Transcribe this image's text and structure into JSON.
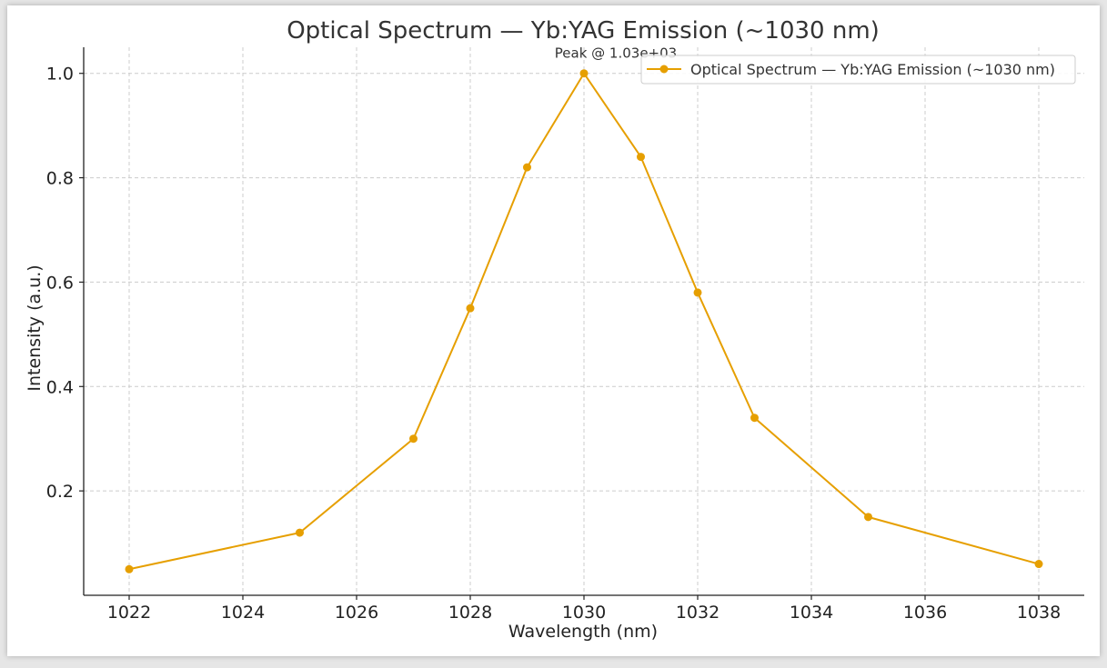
{
  "chart_data": {
    "type": "line",
    "title": "Optical Spectrum — Yb:YAG Emission (~1030 nm)",
    "xlabel": "Wavelength (nm)",
    "ylabel": "Intensity (a.u.)",
    "xlim": [
      1021.2,
      1038.8
    ],
    "ylim": [
      0.0,
      1.05
    ],
    "x_ticks": [
      1022,
      1024,
      1026,
      1028,
      1030,
      1032,
      1034,
      1036,
      1038
    ],
    "y_ticks": [
      0.2,
      0.4,
      0.6,
      0.8,
      1.0
    ],
    "x_tick_labels": [
      "1022",
      "1024",
      "1026",
      "1028",
      "1030",
      "1032",
      "1034",
      "1036",
      "1038"
    ],
    "y_tick_labels": [
      "0.2",
      "0.4",
      "0.6",
      "0.8",
      "1.0"
    ],
    "grid": true,
    "legend_position": "top-right",
    "series": [
      {
        "name": "Optical Spectrum — Yb:YAG Emission (~1030 nm)",
        "color": "#E69F00",
        "x": [
          1022,
          1025,
          1027,
          1028,
          1029,
          1030,
          1031,
          1032,
          1033,
          1035,
          1038
        ],
        "y": [
          0.05,
          0.12,
          0.3,
          0.55,
          0.82,
          1.0,
          0.84,
          0.58,
          0.34,
          0.15,
          0.06
        ]
      }
    ],
    "annotations": [
      {
        "text": "Peak @ 1.03e+03",
        "x": 1030,
        "y": 1.0
      }
    ]
  }
}
